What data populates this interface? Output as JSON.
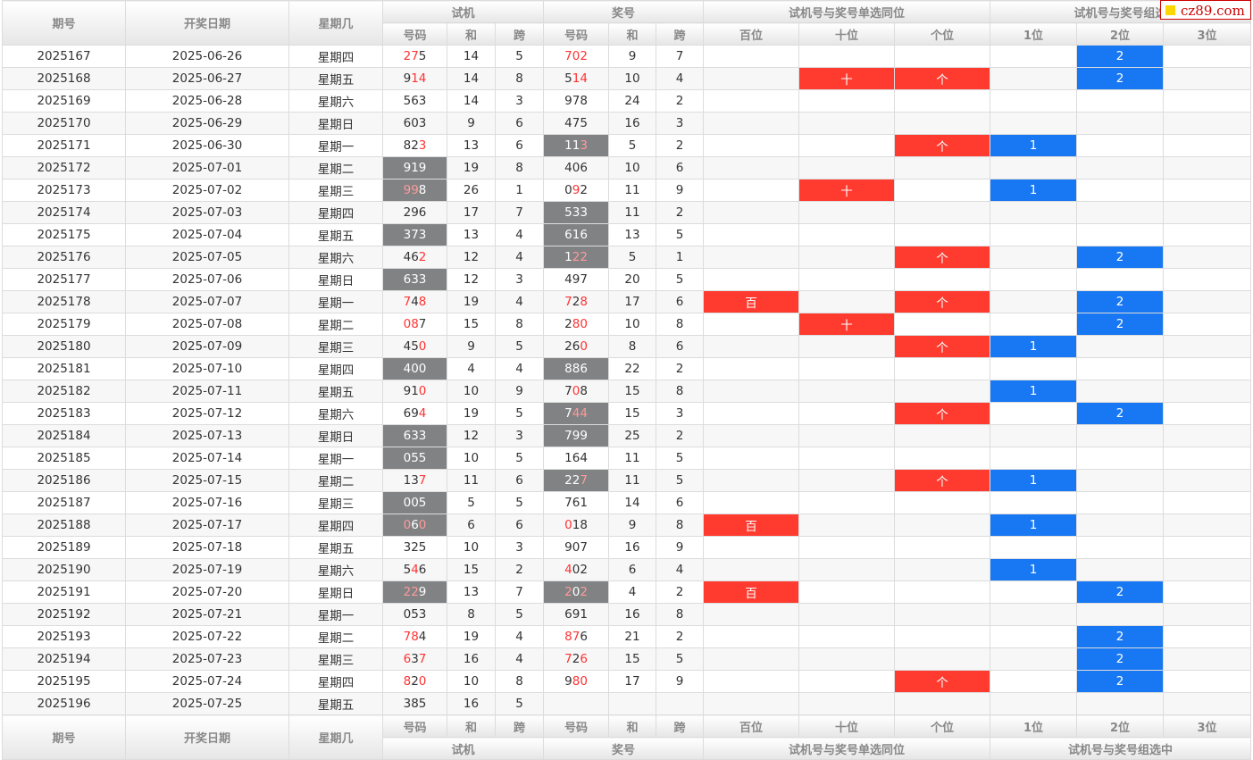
{
  "headers": {
    "qihao": "期号",
    "date": "开奖日期",
    "weekday": "星期几",
    "shiji": "试机",
    "jianghao": "奖号",
    "group_single": "试机号与奖号单选同位",
    "group_combo_top": "试机号与奖号组选",
    "group_combo_bottom": "试机号与奖号组选中",
    "haoma": "号码",
    "he": "和",
    "kua": "跨",
    "bai": "百位",
    "shi": "十位",
    "ge": "个位",
    "w1": "1位",
    "w2": "2位",
    "w3": "3位"
  },
  "logo": {
    "text": "cz89.com"
  },
  "colors": {
    "red": "#ff3b30",
    "blue": "#1877f2",
    "gray": "#808284",
    "highlight": "#ff3333"
  },
  "rows": [
    {
      "qh": "2025167",
      "date": "2025-06-26",
      "wk": "星期四",
      "s": [
        "2",
        "7",
        "5"
      ],
      "sh": [
        1,
        1,
        0
      ],
      "sg": false,
      "sum1": "14",
      "kua1": "5",
      "j": [
        "7",
        "0",
        "2"
      ],
      "jh": [
        1,
        1,
        1
      ],
      "jg": false,
      "sum2": "9",
      "kua2": "7",
      "b": "",
      "t": "",
      "g": "",
      "c1": "",
      "c2": "2",
      "c3": ""
    },
    {
      "qh": "2025168",
      "date": "2025-06-27",
      "wk": "星期五",
      "s": [
        "9",
        "1",
        "4"
      ],
      "sh": [
        0,
        1,
        1
      ],
      "sg": false,
      "sum1": "14",
      "kua1": "8",
      "j": [
        "5",
        "1",
        "4"
      ],
      "jh": [
        0,
        1,
        1
      ],
      "jg": false,
      "sum2": "10",
      "kua2": "4",
      "b": "",
      "t": "十",
      "g": "个",
      "c1": "",
      "c2": "2",
      "c3": ""
    },
    {
      "qh": "2025169",
      "date": "2025-06-28",
      "wk": "星期六",
      "s": [
        "5",
        "6",
        "3"
      ],
      "sh": [
        0,
        0,
        0
      ],
      "sg": false,
      "sum1": "14",
      "kua1": "3",
      "j": [
        "9",
        "7",
        "8"
      ],
      "jh": [
        0,
        0,
        0
      ],
      "jg": false,
      "sum2": "24",
      "kua2": "2",
      "b": "",
      "t": "",
      "g": "",
      "c1": "",
      "c2": "",
      "c3": ""
    },
    {
      "qh": "2025170",
      "date": "2025-06-29",
      "wk": "星期日",
      "s": [
        "6",
        "0",
        "3"
      ],
      "sh": [
        0,
        0,
        0
      ],
      "sg": false,
      "sum1": "9",
      "kua1": "6",
      "j": [
        "4",
        "7",
        "5"
      ],
      "jh": [
        0,
        0,
        0
      ],
      "jg": false,
      "sum2": "16",
      "kua2": "3",
      "b": "",
      "t": "",
      "g": "",
      "c1": "",
      "c2": "",
      "c3": ""
    },
    {
      "qh": "2025171",
      "date": "2025-06-30",
      "wk": "星期一",
      "s": [
        "8",
        "2",
        "3"
      ],
      "sh": [
        0,
        0,
        1
      ],
      "sg": false,
      "sum1": "13",
      "kua1": "6",
      "j": [
        "1",
        "1",
        "3"
      ],
      "jh": [
        0,
        0,
        1
      ],
      "jg": true,
      "sum2": "5",
      "kua2": "2",
      "b": "",
      "t": "",
      "g": "个",
      "c1": "1",
      "c2": "",
      "c3": ""
    },
    {
      "qh": "2025172",
      "date": "2025-07-01",
      "wk": "星期二",
      "s": [
        "9",
        "1",
        "9"
      ],
      "sh": [
        0,
        0,
        0
      ],
      "sg": true,
      "sum1": "19",
      "kua1": "8",
      "j": [
        "4",
        "0",
        "6"
      ],
      "jh": [
        0,
        0,
        0
      ],
      "jg": false,
      "sum2": "10",
      "kua2": "6",
      "b": "",
      "t": "",
      "g": "",
      "c1": "",
      "c2": "",
      "c3": ""
    },
    {
      "qh": "2025173",
      "date": "2025-07-02",
      "wk": "星期三",
      "s": [
        "9",
        "9",
        "8"
      ],
      "sh": [
        1,
        1,
        0
      ],
      "sg": true,
      "sum1": "26",
      "kua1": "1",
      "j": [
        "0",
        "9",
        "2"
      ],
      "jh": [
        0,
        1,
        0
      ],
      "jg": false,
      "sum2": "11",
      "kua2": "9",
      "b": "",
      "t": "十",
      "g": "",
      "c1": "1",
      "c2": "",
      "c3": ""
    },
    {
      "qh": "2025174",
      "date": "2025-07-03",
      "wk": "星期四",
      "s": [
        "2",
        "9",
        "6"
      ],
      "sh": [
        0,
        0,
        0
      ],
      "sg": false,
      "sum1": "17",
      "kua1": "7",
      "j": [
        "5",
        "3",
        "3"
      ],
      "jh": [
        0,
        0,
        0
      ],
      "jg": true,
      "sum2": "11",
      "kua2": "2",
      "b": "",
      "t": "",
      "g": "",
      "c1": "",
      "c2": "",
      "c3": ""
    },
    {
      "qh": "2025175",
      "date": "2025-07-04",
      "wk": "星期五",
      "s": [
        "3",
        "7",
        "3"
      ],
      "sh": [
        0,
        0,
        0
      ],
      "sg": true,
      "sum1": "13",
      "kua1": "4",
      "j": [
        "6",
        "1",
        "6"
      ],
      "jh": [
        0,
        0,
        0
      ],
      "jg": true,
      "sum2": "13",
      "kua2": "5",
      "b": "",
      "t": "",
      "g": "",
      "c1": "",
      "c2": "",
      "c3": ""
    },
    {
      "qh": "2025176",
      "date": "2025-07-05",
      "wk": "星期六",
      "s": [
        "4",
        "6",
        "2"
      ],
      "sh": [
        0,
        0,
        1
      ],
      "sg": false,
      "sum1": "12",
      "kua1": "4",
      "j": [
        "1",
        "2",
        "2"
      ],
      "jh": [
        0,
        1,
        1
      ],
      "jg": true,
      "sum2": "5",
      "kua2": "1",
      "b": "",
      "t": "",
      "g": "个",
      "c1": "",
      "c2": "2",
      "c3": ""
    },
    {
      "qh": "2025177",
      "date": "2025-07-06",
      "wk": "星期日",
      "s": [
        "6",
        "3",
        "3"
      ],
      "sh": [
        0,
        0,
        0
      ],
      "sg": true,
      "sum1": "12",
      "kua1": "3",
      "j": [
        "4",
        "9",
        "7"
      ],
      "jh": [
        0,
        0,
        0
      ],
      "jg": false,
      "sum2": "20",
      "kua2": "5",
      "b": "",
      "t": "",
      "g": "",
      "c1": "",
      "c2": "",
      "c3": ""
    },
    {
      "qh": "2025178",
      "date": "2025-07-07",
      "wk": "星期一",
      "s": [
        "7",
        "4",
        "8"
      ],
      "sh": [
        1,
        0,
        1
      ],
      "sg": false,
      "sum1": "19",
      "kua1": "4",
      "j": [
        "7",
        "2",
        "8"
      ],
      "jh": [
        1,
        0,
        1
      ],
      "jg": false,
      "sum2": "17",
      "kua2": "6",
      "b": "百",
      "t": "",
      "g": "个",
      "c1": "",
      "c2": "2",
      "c3": ""
    },
    {
      "qh": "2025179",
      "date": "2025-07-08",
      "wk": "星期二",
      "s": [
        "0",
        "8",
        "7"
      ],
      "sh": [
        1,
        1,
        0
      ],
      "sg": false,
      "sum1": "15",
      "kua1": "8",
      "j": [
        "2",
        "8",
        "0"
      ],
      "jh": [
        0,
        1,
        1
      ],
      "jg": false,
      "sum2": "10",
      "kua2": "8",
      "b": "",
      "t": "十",
      "g": "",
      "c1": "",
      "c2": "2",
      "c3": ""
    },
    {
      "qh": "2025180",
      "date": "2025-07-09",
      "wk": "星期三",
      "s": [
        "4",
        "5",
        "0"
      ],
      "sh": [
        0,
        0,
        1
      ],
      "sg": false,
      "sum1": "9",
      "kua1": "5",
      "j": [
        "2",
        "6",
        "0"
      ],
      "jh": [
        0,
        0,
        1
      ],
      "jg": false,
      "sum2": "8",
      "kua2": "6",
      "b": "",
      "t": "",
      "g": "个",
      "c1": "1",
      "c2": "",
      "c3": ""
    },
    {
      "qh": "2025181",
      "date": "2025-07-10",
      "wk": "星期四",
      "s": [
        "4",
        "0",
        "0"
      ],
      "sh": [
        0,
        0,
        0
      ],
      "sg": true,
      "sum1": "4",
      "kua1": "4",
      "j": [
        "8",
        "8",
        "6"
      ],
      "jh": [
        0,
        0,
        0
      ],
      "jg": true,
      "sum2": "22",
      "kua2": "2",
      "b": "",
      "t": "",
      "g": "",
      "c1": "",
      "c2": "",
      "c3": ""
    },
    {
      "qh": "2025182",
      "date": "2025-07-11",
      "wk": "星期五",
      "s": [
        "9",
        "1",
        "0"
      ],
      "sh": [
        0,
        0,
        1
      ],
      "sg": false,
      "sum1": "10",
      "kua1": "9",
      "j": [
        "7",
        "0",
        "8"
      ],
      "jh": [
        0,
        1,
        0
      ],
      "jg": false,
      "sum2": "15",
      "kua2": "8",
      "b": "",
      "t": "",
      "g": "",
      "c1": "1",
      "c2": "",
      "c3": ""
    },
    {
      "qh": "2025183",
      "date": "2025-07-12",
      "wk": "星期六",
      "s": [
        "6",
        "9",
        "4"
      ],
      "sh": [
        0,
        0,
        1
      ],
      "sg": false,
      "sum1": "19",
      "kua1": "5",
      "j": [
        "7",
        "4",
        "4"
      ],
      "jh": [
        0,
        1,
        1
      ],
      "jg": true,
      "sum2": "15",
      "kua2": "3",
      "b": "",
      "t": "",
      "g": "个",
      "c1": "",
      "c2": "2",
      "c3": ""
    },
    {
      "qh": "2025184",
      "date": "2025-07-13",
      "wk": "星期日",
      "s": [
        "6",
        "3",
        "3"
      ],
      "sh": [
        0,
        0,
        0
      ],
      "sg": true,
      "sum1": "12",
      "kua1": "3",
      "j": [
        "7",
        "9",
        "9"
      ],
      "jh": [
        0,
        0,
        0
      ],
      "jg": true,
      "sum2": "25",
      "kua2": "2",
      "b": "",
      "t": "",
      "g": "",
      "c1": "",
      "c2": "",
      "c3": ""
    },
    {
      "qh": "2025185",
      "date": "2025-07-14",
      "wk": "星期一",
      "s": [
        "0",
        "5",
        "5"
      ],
      "sh": [
        0,
        0,
        0
      ],
      "sg": true,
      "sum1": "10",
      "kua1": "5",
      "j": [
        "1",
        "6",
        "4"
      ],
      "jh": [
        0,
        0,
        0
      ],
      "jg": false,
      "sum2": "11",
      "kua2": "5",
      "b": "",
      "t": "",
      "g": "",
      "c1": "",
      "c2": "",
      "c3": ""
    },
    {
      "qh": "2025186",
      "date": "2025-07-15",
      "wk": "星期二",
      "s": [
        "1",
        "3",
        "7"
      ],
      "sh": [
        0,
        0,
        1
      ],
      "sg": false,
      "sum1": "11",
      "kua1": "6",
      "j": [
        "2",
        "2",
        "7"
      ],
      "jh": [
        0,
        0,
        1
      ],
      "jg": true,
      "sum2": "11",
      "kua2": "5",
      "b": "",
      "t": "",
      "g": "个",
      "c1": "1",
      "c2": "",
      "c3": ""
    },
    {
      "qh": "2025187",
      "date": "2025-07-16",
      "wk": "星期三",
      "s": [
        "0",
        "0",
        "5"
      ],
      "sh": [
        0,
        0,
        0
      ],
      "sg": true,
      "sum1": "5",
      "kua1": "5",
      "j": [
        "7",
        "6",
        "1"
      ],
      "jh": [
        0,
        0,
        0
      ],
      "jg": false,
      "sum2": "14",
      "kua2": "6",
      "b": "",
      "t": "",
      "g": "",
      "c1": "",
      "c2": "",
      "c3": ""
    },
    {
      "qh": "2025188",
      "date": "2025-07-17",
      "wk": "星期四",
      "s": [
        "0",
        "6",
        "0"
      ],
      "sh": [
        1,
        0,
        1
      ],
      "sg": true,
      "sum1": "6",
      "kua1": "6",
      "j": [
        "0",
        "1",
        "8"
      ],
      "jh": [
        1,
        0,
        0
      ],
      "jg": false,
      "sum2": "9",
      "kua2": "8",
      "b": "百",
      "t": "",
      "g": "",
      "c1": "1",
      "c2": "",
      "c3": ""
    },
    {
      "qh": "2025189",
      "date": "2025-07-18",
      "wk": "星期五",
      "s": [
        "3",
        "2",
        "5"
      ],
      "sh": [
        0,
        0,
        0
      ],
      "sg": false,
      "sum1": "10",
      "kua1": "3",
      "j": [
        "9",
        "0",
        "7"
      ],
      "jh": [
        0,
        0,
        0
      ],
      "jg": false,
      "sum2": "16",
      "kua2": "9",
      "b": "",
      "t": "",
      "g": "",
      "c1": "",
      "c2": "",
      "c3": ""
    },
    {
      "qh": "2025190",
      "date": "2025-07-19",
      "wk": "星期六",
      "s": [
        "5",
        "4",
        "6"
      ],
      "sh": [
        0,
        1,
        0
      ],
      "sg": false,
      "sum1": "15",
      "kua1": "2",
      "j": [
        "4",
        "0",
        "2"
      ],
      "jh": [
        1,
        0,
        0
      ],
      "jg": false,
      "sum2": "6",
      "kua2": "4",
      "b": "",
      "t": "",
      "g": "",
      "c1": "1",
      "c2": "",
      "c3": ""
    },
    {
      "qh": "2025191",
      "date": "2025-07-20",
      "wk": "星期日",
      "s": [
        "2",
        "2",
        "9"
      ],
      "sh": [
        1,
        1,
        0
      ],
      "sg": true,
      "sum1": "13",
      "kua1": "7",
      "j": [
        "2",
        "0",
        "2"
      ],
      "jh": [
        1,
        0,
        1
      ],
      "jg": true,
      "sum2": "4",
      "kua2": "2",
      "b": "百",
      "t": "",
      "g": "",
      "c1": "",
      "c2": "2",
      "c3": ""
    },
    {
      "qh": "2025192",
      "date": "2025-07-21",
      "wk": "星期一",
      "s": [
        "0",
        "5",
        "3"
      ],
      "sh": [
        0,
        0,
        0
      ],
      "sg": false,
      "sum1": "8",
      "kua1": "5",
      "j": [
        "6",
        "9",
        "1"
      ],
      "jh": [
        0,
        0,
        0
      ],
      "jg": false,
      "sum2": "16",
      "kua2": "8",
      "b": "",
      "t": "",
      "g": "",
      "c1": "",
      "c2": "",
      "c3": ""
    },
    {
      "qh": "2025193",
      "date": "2025-07-22",
      "wk": "星期二",
      "s": [
        "7",
        "8",
        "4"
      ],
      "sh": [
        1,
        1,
        0
      ],
      "sg": false,
      "sum1": "19",
      "kua1": "4",
      "j": [
        "8",
        "7",
        "6"
      ],
      "jh": [
        1,
        1,
        0
      ],
      "jg": false,
      "sum2": "21",
      "kua2": "2",
      "b": "",
      "t": "",
      "g": "",
      "c1": "",
      "c2": "2",
      "c3": ""
    },
    {
      "qh": "2025194",
      "date": "2025-07-23",
      "wk": "星期三",
      "s": [
        "6",
        "3",
        "7"
      ],
      "sh": [
        1,
        0,
        1
      ],
      "sg": false,
      "sum1": "16",
      "kua1": "4",
      "j": [
        "7",
        "2",
        "6"
      ],
      "jh": [
        1,
        0,
        1
      ],
      "jg": false,
      "sum2": "15",
      "kua2": "5",
      "b": "",
      "t": "",
      "g": "",
      "c1": "",
      "c2": "2",
      "c3": ""
    },
    {
      "qh": "2025195",
      "date": "2025-07-24",
      "wk": "星期四",
      "s": [
        "8",
        "2",
        "0"
      ],
      "sh": [
        1,
        0,
        1
      ],
      "sg": false,
      "sum1": "10",
      "kua1": "8",
      "j": [
        "9",
        "8",
        "0"
      ],
      "jh": [
        0,
        1,
        1
      ],
      "jg": false,
      "sum2": "17",
      "kua2": "9",
      "b": "",
      "t": "",
      "g": "个",
      "c1": "",
      "c2": "2",
      "c3": ""
    },
    {
      "qh": "2025196",
      "date": "2025-07-25",
      "wk": "星期五",
      "s": [
        "3",
        "8",
        "5"
      ],
      "sh": [
        0,
        0,
        0
      ],
      "sg": false,
      "sum1": "16",
      "kua1": "5",
      "j": [
        "",
        "",
        ""
      ],
      "jh": [
        0,
        0,
        0
      ],
      "jg": false,
      "sum2": "",
      "kua2": "",
      "b": "",
      "t": "",
      "g": "",
      "c1": "",
      "c2": "",
      "c3": ""
    }
  ]
}
